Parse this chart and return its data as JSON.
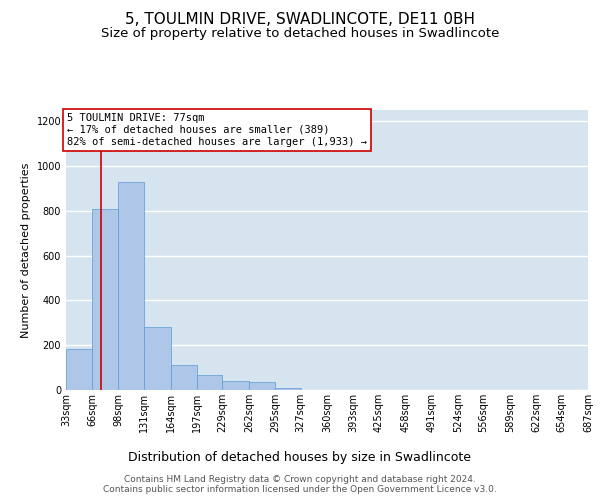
{
  "title": "5, TOULMIN DRIVE, SWADLINCOTE, DE11 0BH",
  "subtitle": "Size of property relative to detached houses in Swadlincote",
  "xlabel": "Distribution of detached houses by size in Swadlincote",
  "ylabel": "Number of detached properties",
  "footer_line1": "Contains HM Land Registry data © Crown copyright and database right 2024.",
  "footer_line2": "Contains public sector information licensed under the Open Government Licence v3.0.",
  "annotation_title": "5 TOULMIN DRIVE: 77sqm",
  "annotation_line2": "← 17% of detached houses are smaller (389)",
  "annotation_line3": "82% of semi-detached houses are larger (1,933) →",
  "bar_edges": [
    33,
    66,
    98,
    131,
    164,
    197,
    229,
    262,
    295,
    327,
    360,
    393,
    425,
    458,
    491,
    524,
    556,
    589,
    622,
    654,
    687
  ],
  "bar_heights": [
    185,
    810,
    930,
    280,
    110,
    65,
    40,
    35,
    10,
    0,
    0,
    0,
    0,
    0,
    0,
    0,
    0,
    0,
    0,
    0
  ],
  "bar_color": "#aec6e8",
  "bar_edge_color": "#5b9bd5",
  "vline_color": "#cc0000",
  "vline_x": 77,
  "annotation_box_edgecolor": "#cc0000",
  "ylim": [
    0,
    1250
  ],
  "yticks": [
    0,
    200,
    400,
    600,
    800,
    1000,
    1200
  ],
  "bg_color": "#d6e4f0",
  "grid_color": "#ffffff",
  "title_fontsize": 11,
  "subtitle_fontsize": 9.5,
  "xlabel_fontsize": 9,
  "ylabel_fontsize": 8,
  "tick_fontsize": 7,
  "annotation_fontsize": 7.5,
  "footer_fontsize": 6.5
}
